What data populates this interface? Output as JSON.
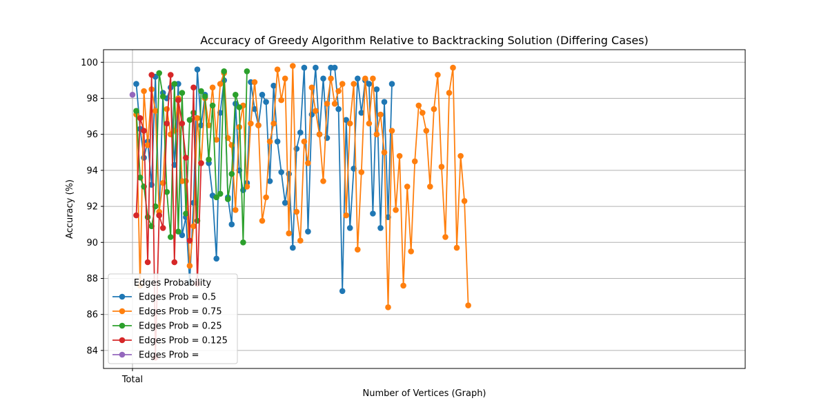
{
  "chart_data": {
    "type": "line",
    "title": "Accuracy of Greedy Algorithm Relative to Backtracking Solution (Differing Cases)",
    "xlabel": "Number of Vertices (Graph)",
    "ylabel": "Accuracy (%)",
    "ylim": [
      83,
      100.7
    ],
    "yticks": [
      84,
      86,
      88,
      90,
      92,
      94,
      96,
      98,
      100
    ],
    "xticks": [
      "Total"
    ],
    "grid": true,
    "legend": {
      "title": "Edges Probability",
      "placement": "lower-left"
    },
    "series": [
      {
        "name": "Edges Prob = 0.5",
        "color": "#1f77b4",
        "values": [
          null,
          98.8,
          96.3,
          94.7,
          95.6,
          93.2,
          99.2,
          91.5,
          98.3,
          98.0,
          98.6,
          94.3,
          98.8,
          90.4,
          91.4,
          87.8,
          92.2,
          99.6,
          96.5,
          98.2,
          94.4,
          92.6,
          89.1,
          97.2,
          99.0,
          92.5,
          91.0,
          97.7,
          94.0,
          92.9,
          93.3,
          98.9,
          97.4,
          96.5,
          98.2,
          97.8,
          93.4,
          98.7,
          95.6,
          93.9,
          92.2,
          93.8,
          89.7,
          95.2,
          96.1,
          99.7,
          90.6,
          97.1,
          99.7,
          96.0,
          99.1,
          95.8,
          99.7,
          99.7,
          97.4,
          87.3,
          96.8,
          90.8,
          94.1,
          99.1,
          97.2,
          99.0,
          98.8,
          91.6,
          98.5,
          90.8,
          97.8,
          91.4,
          98.8
        ]
      },
      {
        "name": "Edges Prob = 0.75",
        "color": "#ff7f0e",
        "values": [
          null,
          97.1,
          87.6,
          98.4,
          95.4,
          98.5,
          97.3,
          91.7,
          93.3,
          97.4,
          96.0,
          96.2,
          98.0,
          93.4,
          93.4,
          88.7,
          90.9,
          96.9,
          94.4,
          98.0,
          96.5,
          98.6,
          95.7,
          98.8,
          99.4,
          95.8,
          95.4,
          91.8,
          96.4,
          97.6,
          93.1,
          96.6,
          98.9,
          96.5,
          91.2,
          92.5,
          95.6,
          96.6,
          99.6,
          97.9,
          99.1,
          90.5,
          99.8,
          91.7,
          90.1,
          95.6,
          94.4,
          98.6,
          97.3,
          96.0,
          93.4,
          97.7,
          99.1,
          97.7,
          98.4,
          98.8,
          91.5,
          96.6,
          98.8,
          89.6,
          93.9,
          99.1,
          96.6,
          99.1,
          96.0,
          97.1,
          95.0,
          86.4,
          96.2,
          91.8,
          94.8,
          87.6,
          93.1,
          89.5,
          94.5,
          97.6,
          97.2,
          96.2,
          93.1,
          97.4,
          99.3,
          94.2,
          90.3,
          98.3,
          99.7,
          89.7,
          94.8,
          92.3,
          86.5
        ]
      },
      {
        "name": "Edges Prob = 0.25",
        "color": "#2ca02c",
        "values": [
          null,
          97.3,
          93.6,
          93.1,
          91.4,
          90.9,
          92.0,
          99.4,
          98.1,
          92.8,
          90.3,
          98.8,
          90.6,
          98.3,
          91.6,
          96.8,
          97.2,
          91.2,
          98.4,
          98.1,
          94.6,
          97.6,
          92.5,
          92.7,
          99.5,
          92.4,
          93.8,
          98.2,
          97.5,
          90.0,
          99.5
        ]
      },
      {
        "name": "Edges Prob = 0.125",
        "color": "#d62728",
        "values": [
          null,
          91.5,
          96.9,
          96.2,
          88.9,
          99.3,
          83.6,
          91.5,
          90.8,
          96.6,
          99.3,
          88.9,
          97.9,
          96.6,
          94.7,
          90.1,
          98.6,
          87.7,
          94.4
        ]
      },
      {
        "name": "Edges Prob =",
        "color": "#9467bd",
        "values": [
          98.2
        ]
      }
    ]
  }
}
